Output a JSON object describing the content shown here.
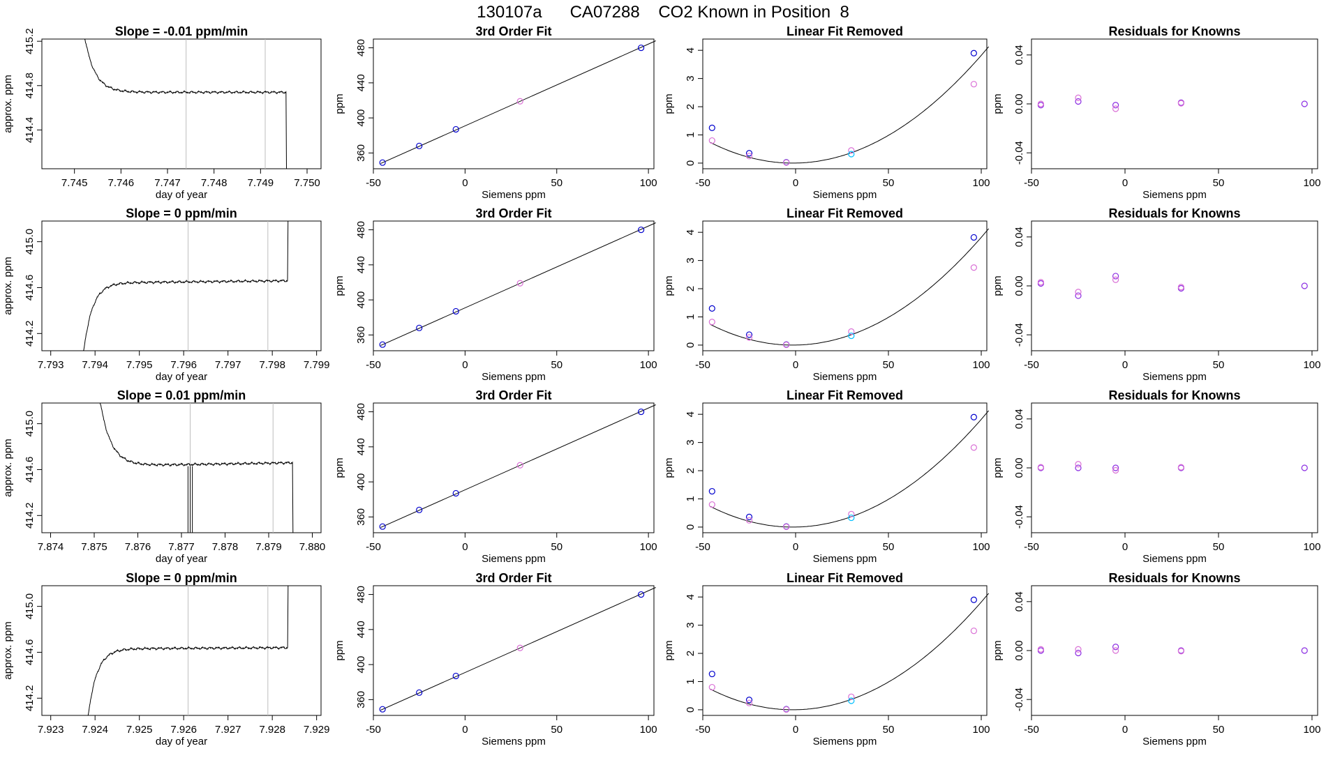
{
  "title": "130107a      CA07288    CO2 Known in Position  8",
  "colors": {
    "frame": "#000000",
    "trace": "#000000",
    "vline": "#bebebe",
    "fit_line": "#000000",
    "pt_blue": "#0000cd",
    "pt_magenta": "#da70d6",
    "pt_cyan": "#00bfff",
    "pt_purple": "#8a2be2",
    "pt_red": "#ff6060"
  },
  "chart_data": [
    {
      "type": "line",
      "panel": "time-series",
      "row": 0,
      "title": "Slope =  -0.01  ppm/min",
      "xlabel": "day of year",
      "ylabel": "approx. ppm",
      "xlim": [
        7.7443,
        7.7503
      ],
      "ylim": [
        414.05,
        415.22
      ],
      "xticks": [
        7.745,
        7.746,
        7.747,
        7.748,
        7.749,
        7.75
      ],
      "xtick_labels": [
        "7.745",
        "7.746",
        "7.747",
        "7.748",
        "7.749",
        "7.750"
      ],
      "yticks": [
        414.4,
        414.8,
        415.2
      ],
      "ytick_labels": [
        "414.4",
        "414.8",
        "415.2"
      ],
      "vlines": [
        7.7474,
        7.7491
      ],
      "trace": {
        "t0": 7.7451,
        "t1": 7.7496,
        "start": 415.6,
        "level": 414.74,
        "tau": 0.00022,
        "drop_at": 7.74955,
        "drop_to": 413.6,
        "wiggle": 0.012,
        "rise": 0,
        "spikes": []
      }
    },
    {
      "type": "line",
      "panel": "time-series",
      "row": 1,
      "title": "Slope =  0  ppm/min",
      "xlabel": "day of year",
      "ylabel": "approx. ppm",
      "xlim": [
        7.7928,
        7.7991
      ],
      "ylim": [
        414.05,
        415.18
      ],
      "xticks": [
        7.793,
        7.794,
        7.795,
        7.796,
        7.797,
        7.798,
        7.799
      ],
      "xtick_labels": [
        "7.793",
        "7.794",
        "7.795",
        "7.796",
        "7.797",
        "7.798",
        "7.799"
      ],
      "yticks": [
        414.2,
        414.6,
        415.0
      ],
      "ytick_labels": [
        "414.2",
        "414.6",
        "415.0"
      ],
      "vlines": [
        7.7961,
        7.7979
      ],
      "trace": {
        "t0": 7.7937,
        "t1": 7.7984,
        "start": 413.9,
        "level": 414.64,
        "tau": 0.0002,
        "drop_at": 7.79835,
        "drop_to": 415.6,
        "wiggle": 0.012,
        "rise": 0.02,
        "spikes": []
      }
    },
    {
      "type": "line",
      "panel": "time-series",
      "row": 2,
      "title": "Slope =  0.01  ppm/min",
      "xlabel": "day of year",
      "ylabel": "approx. ppm",
      "xlim": [
        7.8738,
        7.8802
      ],
      "ylim": [
        414.05,
        415.18
      ],
      "xticks": [
        7.874,
        7.875,
        7.876,
        7.877,
        7.878,
        7.879,
        7.88
      ],
      "xtick_labels": [
        "7.874",
        "7.875",
        "7.876",
        "7.877",
        "7.878",
        "7.879",
        "7.880"
      ],
      "yticks": [
        414.2,
        414.6,
        415.0
      ],
      "ytick_labels": [
        "414.2",
        "414.6",
        "415.0"
      ],
      "vlines": [
        7.8772,
        7.8791
      ],
      "trace": {
        "t0": 7.875,
        "t1": 7.8796,
        "start": 415.6,
        "level": 414.63,
        "tau": 0.00025,
        "drop_at": 7.87955,
        "drop_to": 413.6,
        "wiggle": 0.012,
        "rise": 0.03,
        "spikes": [
          7.87715,
          7.8772,
          7.87725
        ]
      }
    },
    {
      "type": "line",
      "panel": "time-series",
      "row": 3,
      "title": "Slope =  0  ppm/min",
      "xlabel": "day of year",
      "ylabel": "approx. ppm",
      "xlim": [
        7.9228,
        7.9291
      ],
      "ylim": [
        414.05,
        415.18
      ],
      "xticks": [
        7.923,
        7.924,
        7.925,
        7.926,
        7.927,
        7.928,
        7.929
      ],
      "xtick_labels": [
        "7.923",
        "7.924",
        "7.925",
        "7.926",
        "7.927",
        "7.928",
        "7.929"
      ],
      "yticks": [
        414.2,
        414.6,
        415.0
      ],
      "ytick_labels": [
        "414.2",
        "414.6",
        "415.0"
      ],
      "vlines": [
        7.9261,
        7.9279
      ],
      "trace": {
        "t0": 7.9238,
        "t1": 7.9284,
        "start": 413.9,
        "level": 414.63,
        "tau": 0.0002,
        "drop_at": 7.92835,
        "drop_to": 415.6,
        "wiggle": 0.012,
        "rise": 0.01,
        "spikes": []
      }
    },
    {
      "type": "scatter",
      "panel": "fit",
      "title": "3rd Order Fit",
      "xlabel": "Siemens ppm",
      "ylabel": "ppm",
      "xlim": [
        -50,
        103
      ],
      "ylim": [
        342,
        490
      ],
      "xticks": [
        -50,
        0,
        50,
        100
      ],
      "xtick_labels": [
        "-50",
        "0",
        "50",
        "100"
      ],
      "yticks": [
        360,
        400,
        440,
        480
      ],
      "ytick_labels": [
        "360",
        "400",
        "440",
        "480"
      ],
      "line": {
        "x": [
          -46,
          104
        ],
        "y": [
          348,
          488
        ]
      },
      "points": [
        {
          "x": -45,
          "y": 349,
          "c": "pt_blue"
        },
        {
          "x": -25,
          "y": 368,
          "c": "pt_blue"
        },
        {
          "x": -5,
          "y": 387,
          "c": "pt_blue"
        },
        {
          "x": 30,
          "y": 419,
          "c": "pt_magenta"
        },
        {
          "x": 96,
          "y": 480,
          "c": "pt_blue"
        }
      ]
    },
    {
      "type": "scatter",
      "panel": "linear-fit-removed",
      "title": "Linear Fit Removed",
      "xlabel": "Siemens ppm",
      "ylabel": "ppm",
      "xlim": [
        -50,
        103
      ],
      "ylim": [
        -0.2,
        4.4
      ],
      "xticks": [
        -50,
        0,
        50,
        100
      ],
      "xtick_labels": [
        "-50",
        "0",
        "50",
        "100"
      ],
      "yticks": [
        0,
        1,
        2,
        3,
        4
      ],
      "ytick_labels": [
        "0",
        "1",
        "2",
        "3",
        "4"
      ],
      "curve": {
        "a": 0.000371,
        "x0": -1.5,
        "from": -46,
        "to": 104
      },
      "rows": [
        [
          {
            "x": -45,
            "y": 1.25,
            "c": "pt_blue"
          },
          {
            "x": -45,
            "y": 0.8,
            "c": "pt_magenta"
          },
          {
            "x": -25,
            "y": 0.35,
            "c": "pt_blue"
          },
          {
            "x": -25,
            "y": 0.25,
            "c": "pt_magenta"
          },
          {
            "x": -5,
            "y": 0.03,
            "c": "pt_blue"
          },
          {
            "x": -5,
            "y": 0.02,
            "c": "pt_magenta"
          },
          {
            "x": 30,
            "y": 0.45,
            "c": "pt_magenta"
          },
          {
            "x": 30,
            "y": 0.32,
            "c": "pt_cyan"
          },
          {
            "x": 96,
            "y": 3.9,
            "c": "pt_blue"
          },
          {
            "x": 96,
            "y": 2.8,
            "c": "pt_magenta"
          }
        ],
        [
          {
            "x": -45,
            "y": 1.3,
            "c": "pt_blue"
          },
          {
            "x": -45,
            "y": 0.82,
            "c": "pt_magenta"
          },
          {
            "x": -25,
            "y": 0.37,
            "c": "pt_blue"
          },
          {
            "x": -25,
            "y": 0.27,
            "c": "pt_magenta"
          },
          {
            "x": -5,
            "y": 0.02,
            "c": "pt_blue"
          },
          {
            "x": -5,
            "y": 0.01,
            "c": "pt_magenta"
          },
          {
            "x": 30,
            "y": 0.48,
            "c": "pt_magenta"
          },
          {
            "x": 30,
            "y": 0.33,
            "c": "pt_cyan"
          },
          {
            "x": 96,
            "y": 3.82,
            "c": "pt_blue"
          },
          {
            "x": 96,
            "y": 2.75,
            "c": "pt_magenta"
          }
        ],
        [
          {
            "x": -45,
            "y": 1.27,
            "c": "pt_blue"
          },
          {
            "x": -45,
            "y": 0.8,
            "c": "pt_magenta"
          },
          {
            "x": -25,
            "y": 0.36,
            "c": "pt_blue"
          },
          {
            "x": -25,
            "y": 0.24,
            "c": "pt_magenta"
          },
          {
            "x": -5,
            "y": 0.02,
            "c": "pt_blue"
          },
          {
            "x": -5,
            "y": 0.01,
            "c": "pt_magenta"
          },
          {
            "x": 30,
            "y": 0.46,
            "c": "pt_magenta"
          },
          {
            "x": 30,
            "y": 0.33,
            "c": "pt_cyan"
          },
          {
            "x": 96,
            "y": 3.9,
            "c": "pt_blue"
          },
          {
            "x": 96,
            "y": 2.82,
            "c": "pt_magenta"
          }
        ],
        [
          {
            "x": -45,
            "y": 1.27,
            "c": "pt_blue"
          },
          {
            "x": -45,
            "y": 0.8,
            "c": "pt_magenta"
          },
          {
            "x": -25,
            "y": 0.35,
            "c": "pt_blue"
          },
          {
            "x": -25,
            "y": 0.24,
            "c": "pt_magenta"
          },
          {
            "x": -5,
            "y": 0.02,
            "c": "pt_blue"
          },
          {
            "x": -5,
            "y": 0.01,
            "c": "pt_magenta"
          },
          {
            "x": 30,
            "y": 0.46,
            "c": "pt_magenta"
          },
          {
            "x": 30,
            "y": 0.32,
            "c": "pt_cyan"
          },
          {
            "x": 96,
            "y": 3.9,
            "c": "pt_blue"
          },
          {
            "x": 96,
            "y": 2.8,
            "c": "pt_magenta"
          }
        ]
      ]
    },
    {
      "type": "scatter",
      "panel": "residuals",
      "title": "Residuals for Knowns",
      "xlabel": "Siemens ppm",
      "ylabel": "ppm",
      "xlim": [
        -50,
        103
      ],
      "ylim": [
        -0.053,
        0.053
      ],
      "xticks": [
        -50,
        0,
        50,
        100
      ],
      "xtick_labels": [
        "-50",
        "0",
        "50",
        "100"
      ],
      "yticks": [
        -0.04,
        0,
        0.04
      ],
      "ytick_labels": [
        "-0.04",
        "0.00",
        "0.04"
      ],
      "rows": [
        [
          {
            "x": -45,
            "y": -0.001,
            "c": "pt_purple"
          },
          {
            "x": -45,
            "y": 0.0,
            "c": "pt_magenta"
          },
          {
            "x": -25,
            "y": 0.002,
            "c": "pt_purple"
          },
          {
            "x": -25,
            "y": 0.005,
            "c": "pt_magenta"
          },
          {
            "x": -5,
            "y": -0.001,
            "c": "pt_purple"
          },
          {
            "x": -5,
            "y": -0.004,
            "c": "pt_magenta"
          },
          {
            "x": 30,
            "y": 0.001,
            "c": "pt_purple"
          },
          {
            "x": 30,
            "y": 0.0005,
            "c": "pt_magenta"
          },
          {
            "x": 96,
            "y": 0.0,
            "c": "pt_purple"
          }
        ],
        [
          {
            "x": -45,
            "y": 0.002,
            "c": "pt_purple"
          },
          {
            "x": -45,
            "y": 0.003,
            "c": "pt_magenta"
          },
          {
            "x": -25,
            "y": -0.008,
            "c": "pt_purple"
          },
          {
            "x": -25,
            "y": -0.005,
            "c": "pt_magenta"
          },
          {
            "x": -5,
            "y": 0.008,
            "c": "pt_purple"
          },
          {
            "x": -5,
            "y": 0.005,
            "c": "pt_magenta"
          },
          {
            "x": 30,
            "y": -0.002,
            "c": "pt_purple"
          },
          {
            "x": 30,
            "y": -0.001,
            "c": "pt_magenta"
          },
          {
            "x": 96,
            "y": 0.0,
            "c": "pt_purple"
          }
        ],
        [
          {
            "x": -45,
            "y": 0.0,
            "c": "pt_purple"
          },
          {
            "x": -45,
            "y": 0.0005,
            "c": "pt_magenta"
          },
          {
            "x": -25,
            "y": 0.0,
            "c": "pt_purple"
          },
          {
            "x": -25,
            "y": 0.003,
            "c": "pt_magenta"
          },
          {
            "x": -5,
            "y": 0.0,
            "c": "pt_purple"
          },
          {
            "x": -5,
            "y": -0.002,
            "c": "pt_magenta"
          },
          {
            "x": 30,
            "y": 0.0,
            "c": "pt_purple"
          },
          {
            "x": 30,
            "y": 0.0005,
            "c": "pt_magenta"
          },
          {
            "x": 96,
            "y": 0.0,
            "c": "pt_purple"
          }
        ],
        [
          {
            "x": -45,
            "y": 0.0,
            "c": "pt_purple"
          },
          {
            "x": -45,
            "y": 0.001,
            "c": "pt_magenta"
          },
          {
            "x": -25,
            "y": -0.002,
            "c": "pt_purple"
          },
          {
            "x": -25,
            "y": 0.001,
            "c": "pt_magenta"
          },
          {
            "x": -5,
            "y": 0.003,
            "c": "pt_purple"
          },
          {
            "x": -5,
            "y": 0.0,
            "c": "pt_magenta"
          },
          {
            "x": 30,
            "y": 0.0,
            "c": "pt_purple"
          },
          {
            "x": 30,
            "y": -0.0005,
            "c": "pt_magenta"
          },
          {
            "x": 96,
            "y": 0.0,
            "c": "pt_purple"
          }
        ]
      ]
    }
  ]
}
